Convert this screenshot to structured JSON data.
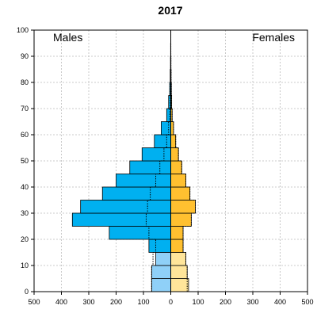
{
  "chart_data": {
    "type": "bar",
    "title": "2017",
    "left_label": "Males",
    "right_label": "Females",
    "orientation": "population-pyramid",
    "age_groups": [
      "0-4",
      "5-9",
      "10-14",
      "15-19",
      "20-24",
      "25-29",
      "30-34",
      "35-39",
      "40-44",
      "45-49",
      "50-54",
      "55-59",
      "60-64",
      "65-69",
      "70-74",
      "75-79",
      "80-84",
      "85-89",
      "90-94",
      "95-99"
    ],
    "series": [
      {
        "name": "Males",
        "values": [
          70,
          70,
          55,
          80,
          225,
          360,
          330,
          250,
          200,
          150,
          105,
          60,
          35,
          15,
          8,
          4,
          2,
          1,
          0.5,
          0.2
        ],
        "dotted_values": [
          70,
          70,
          65,
          55,
          80,
          90,
          85,
          75,
          55,
          40,
          25,
          15,
          8,
          4,
          2,
          1,
          0.5,
          0.2,
          0.1,
          0
        ]
      },
      {
        "name": "Females",
        "values": [
          65,
          60,
          55,
          45,
          45,
          75,
          90,
          70,
          55,
          40,
          28,
          18,
          10,
          5,
          3,
          2,
          1,
          0.5,
          0.2,
          0.1
        ],
        "dotted_values": [
          60,
          60,
          55,
          45,
          45,
          75,
          90,
          70,
          55,
          40,
          28,
          18,
          10,
          5,
          3,
          2,
          1,
          0.5,
          0.2,
          0.1
        ]
      }
    ],
    "child_age_limit": 15,
    "colors": {
      "male_adult": "#00b0f0",
      "male_child": "#8fd0f8",
      "female_adult": "#ffc030",
      "female_child": "#ffe59a"
    },
    "x_ticks": [
      500,
      400,
      300,
      200,
      100,
      0,
      100,
      200,
      300,
      400,
      500
    ],
    "y_ticks": [
      0,
      10,
      20,
      30,
      40,
      50,
      60,
      70,
      80,
      90,
      100
    ],
    "xlim": [
      -500,
      500
    ],
    "ylim": [
      0,
      100
    ],
    "grid": true
  }
}
